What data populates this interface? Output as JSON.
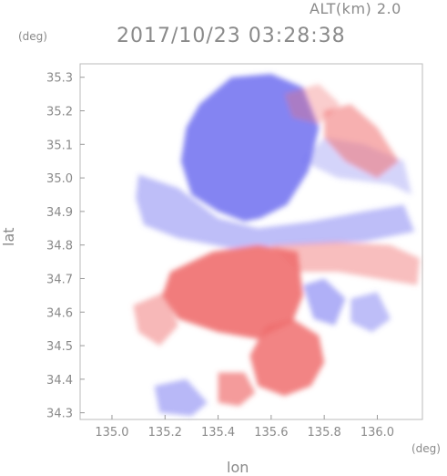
{
  "header": {
    "altitude_label": "ALT(km) 2.0",
    "timestamp": "2017/10/23 03:28:38"
  },
  "chart_data": {
    "type": "heatmap",
    "title": "2017/10/23 03:28:38",
    "subtitle": "ALT(km) 2.0",
    "xlabel": "lon",
    "ylabel": "lat",
    "x_unit": "(deg)",
    "y_unit": "(deg)",
    "xlim": [
      134.88,
      136.17
    ],
    "ylim": [
      34.28,
      35.34
    ],
    "x_ticks": [
      135.0,
      135.2,
      135.4,
      135.6,
      135.8,
      136.0
    ],
    "x_tick_labels": [
      "135.0",
      "135.2",
      "135.4",
      "135.6",
      "135.8",
      "136.0"
    ],
    "y_ticks": [
      34.3,
      34.4,
      34.5,
      34.6,
      34.7,
      34.8,
      34.9,
      35.0,
      35.1,
      35.2,
      35.3
    ],
    "y_tick_labels": [
      "34.3",
      "34.4",
      "34.5",
      "34.6",
      "34.7",
      "34.8",
      "34.9",
      "35.0",
      "35.1",
      "35.2",
      "35.3"
    ],
    "grid": false,
    "colors": {
      "negative": "#6f6ff0",
      "positive": "#f06f6f",
      "neutral": "#ffffff"
    },
    "regions": [
      {
        "kind": "negative",
        "strength": 0.85,
        "polygon": [
          [
            135.33,
            35.22
          ],
          [
            135.45,
            35.3
          ],
          [
            135.6,
            35.31
          ],
          [
            135.72,
            35.27
          ],
          [
            135.78,
            35.15
          ],
          [
            135.74,
            35.02
          ],
          [
            135.66,
            34.92
          ],
          [
            135.56,
            34.88
          ],
          [
            135.5,
            34.87
          ],
          [
            135.4,
            34.9
          ],
          [
            135.3,
            34.95
          ],
          [
            135.26,
            35.05
          ],
          [
            135.28,
            35.15
          ]
        ]
      },
      {
        "kind": "negative",
        "strength": 0.45,
        "polygon": [
          [
            135.1,
            35.01
          ],
          [
            135.25,
            34.97
          ],
          [
            135.4,
            34.88
          ],
          [
            135.55,
            34.85
          ],
          [
            135.75,
            34.87
          ],
          [
            135.95,
            34.9
          ],
          [
            136.1,
            34.92
          ],
          [
            136.14,
            34.84
          ],
          [
            135.95,
            34.81
          ],
          [
            135.7,
            34.8
          ],
          [
            135.45,
            34.79
          ],
          [
            135.25,
            34.82
          ],
          [
            135.12,
            34.86
          ],
          [
            135.09,
            34.94
          ]
        ]
      },
      {
        "kind": "negative",
        "strength": 0.3,
        "polygon": [
          [
            135.72,
            35.05
          ],
          [
            135.85,
            35.0
          ],
          [
            136.05,
            34.98
          ],
          [
            136.13,
            34.95
          ],
          [
            136.1,
            35.05
          ],
          [
            135.95,
            35.1
          ],
          [
            135.8,
            35.12
          ]
        ]
      },
      {
        "kind": "positive",
        "strength": 0.55,
        "polygon": [
          [
            135.8,
            35.2
          ],
          [
            135.9,
            35.22
          ],
          [
            136.0,
            35.15
          ],
          [
            136.08,
            35.05
          ],
          [
            136.0,
            35.0
          ],
          [
            135.88,
            35.05
          ],
          [
            135.8,
            35.12
          ]
        ]
      },
      {
        "kind": "positive",
        "strength": 0.35,
        "polygon": [
          [
            135.65,
            35.25
          ],
          [
            135.78,
            35.28
          ],
          [
            135.86,
            35.22
          ],
          [
            135.78,
            35.16
          ],
          [
            135.68,
            35.18
          ]
        ]
      },
      {
        "kind": "positive",
        "strength": 0.9,
        "polygon": [
          [
            135.22,
            34.72
          ],
          [
            135.38,
            34.78
          ],
          [
            135.55,
            34.8
          ],
          [
            135.7,
            34.78
          ],
          [
            135.72,
            34.65
          ],
          [
            135.68,
            34.57
          ],
          [
            135.55,
            34.52
          ],
          [
            135.4,
            34.54
          ],
          [
            135.25,
            34.58
          ],
          [
            135.19,
            34.65
          ]
        ]
      },
      {
        "kind": "positive",
        "strength": 0.45,
        "polygon": [
          [
            135.6,
            34.8
          ],
          [
            135.85,
            34.81
          ],
          [
            136.05,
            34.8
          ],
          [
            136.16,
            34.76
          ],
          [
            136.15,
            34.68
          ],
          [
            136.0,
            34.7
          ],
          [
            135.85,
            34.72
          ],
          [
            135.7,
            34.72
          ]
        ]
      },
      {
        "kind": "positive",
        "strength": 0.85,
        "polygon": [
          [
            135.58,
            34.56
          ],
          [
            135.68,
            34.58
          ],
          [
            135.78,
            34.53
          ],
          [
            135.8,
            34.45
          ],
          [
            135.75,
            34.38
          ],
          [
            135.65,
            34.35
          ],
          [
            135.55,
            34.38
          ],
          [
            135.52,
            34.47
          ]
        ]
      },
      {
        "kind": "positive",
        "strength": 0.7,
        "polygon": [
          [
            135.4,
            34.42
          ],
          [
            135.5,
            34.42
          ],
          [
            135.54,
            34.36
          ],
          [
            135.48,
            34.32
          ],
          [
            135.4,
            34.33
          ]
        ]
      },
      {
        "kind": "negative",
        "strength": 0.55,
        "polygon": [
          [
            135.72,
            34.68
          ],
          [
            135.8,
            34.7
          ],
          [
            135.88,
            34.64
          ],
          [
            135.84,
            34.56
          ],
          [
            135.76,
            34.58
          ]
        ]
      },
      {
        "kind": "negative",
        "strength": 0.5,
        "polygon": [
          [
            135.16,
            34.38
          ],
          [
            135.28,
            34.4
          ],
          [
            135.36,
            34.33
          ],
          [
            135.3,
            34.29
          ],
          [
            135.18,
            34.3
          ]
        ]
      },
      {
        "kind": "negative",
        "strength": 0.45,
        "polygon": [
          [
            135.9,
            34.64
          ],
          [
            136.0,
            34.66
          ],
          [
            136.05,
            34.58
          ],
          [
            135.98,
            34.54
          ],
          [
            135.9,
            34.57
          ]
        ]
      },
      {
        "kind": "positive",
        "strength": 0.5,
        "polygon": [
          [
            135.08,
            34.62
          ],
          [
            135.2,
            34.66
          ],
          [
            135.25,
            34.56
          ],
          [
            135.18,
            34.5
          ],
          [
            135.1,
            34.54
          ]
        ]
      }
    ]
  }
}
